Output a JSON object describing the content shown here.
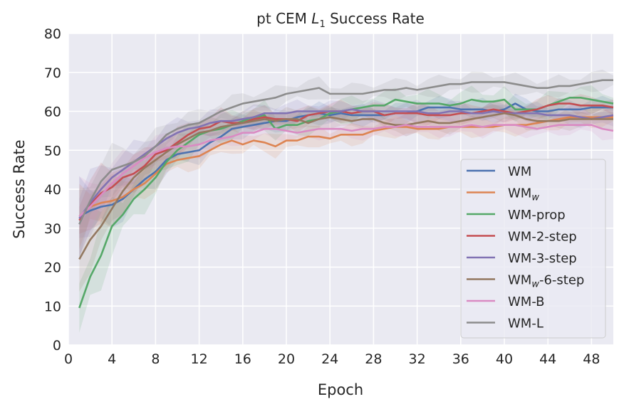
{
  "chart_data": {
    "type": "line",
    "title": {
      "prefix": "pt CEM ",
      "var": "L",
      "sub": "1",
      "suffix": " Success Rate"
    },
    "xlabel": "Epoch",
    "ylabel": "Success Rate",
    "xlim": [
      0,
      50
    ],
    "ylim": [
      0,
      80
    ],
    "xticks": [
      "0",
      "4",
      "8",
      "12",
      "16",
      "20",
      "24",
      "28",
      "32",
      "36",
      "40",
      "44",
      "48"
    ],
    "yticks": [
      "0",
      "10",
      "20",
      "30",
      "40",
      "50",
      "60",
      "70",
      "80"
    ],
    "grid": true,
    "legend_position": "lower-right",
    "x": [
      1,
      2,
      3,
      4,
      5,
      6,
      7,
      8,
      9,
      10,
      11,
      12,
      13,
      14,
      15,
      16,
      17,
      18,
      19,
      20,
      21,
      22,
      23,
      24,
      25,
      26,
      27,
      28,
      29,
      30,
      31,
      32,
      33,
      34,
      35,
      36,
      37,
      38,
      39,
      40,
      41,
      42,
      43,
      44,
      45,
      46,
      47,
      48,
      49,
      50
    ],
    "series": [
      {
        "name": "WM",
        "label": {
          "base": "WM",
          "sub": "",
          "rest": ""
        },
        "color": "#4c72b0",
        "band": 2,
        "values": [
          33,
          34.5,
          35.5,
          36,
          37.5,
          40,
          42.5,
          44.5,
          47.5,
          49,
          49.5,
          50,
          52,
          53.5,
          55.5,
          56,
          56.5,
          57,
          57.5,
          57.5,
          58.5,
          59,
          59.5,
          59,
          59.5,
          59,
          59,
          59,
          59,
          59.5,
          59.5,
          60,
          61,
          61,
          61,
          60.5,
          60.5,
          60.5,
          60,
          60.5,
          62,
          60.5,
          60,
          60,
          60.5,
          60.5,
          60.5,
          61,
          61,
          61
        ]
      },
      {
        "name": "WM_w",
        "label": {
          "base": "WM",
          "sub": "w",
          "rest": ""
        },
        "color": "#dd8452",
        "band": 2,
        "values": [
          33,
          35.5,
          36.5,
          37,
          38,
          40,
          41.5,
          44,
          46.5,
          47.5,
          48,
          48.5,
          50,
          51.5,
          52.5,
          51.5,
          52.5,
          52,
          51,
          52.5,
          52.5,
          53.5,
          53.5,
          53,
          54,
          54,
          54,
          55,
          55.5,
          56,
          56,
          55.5,
          55.5,
          55.5,
          56,
          56,
          56,
          56,
          56,
          56.5,
          56.5,
          56.5,
          57,
          57.5,
          58,
          58.5,
          58.5,
          58.5,
          58.5,
          58.5
        ]
      },
      {
        "name": "WM-prop",
        "label": {
          "base": "WM-prop",
          "sub": "",
          "rest": ""
        },
        "color": "#55a868",
        "band": 2.5,
        "values": [
          9.5,
          17.5,
          23,
          30.5,
          33.5,
          37.5,
          40,
          43,
          47,
          50,
          52,
          54,
          55,
          55.5,
          56.5,
          57.5,
          58.5,
          59,
          55.5,
          56.5,
          56.5,
          57.5,
          58,
          59.5,
          60,
          60.5,
          61,
          61.5,
          61.5,
          63,
          62.5,
          62,
          62,
          62,
          61.5,
          62,
          63,
          62.5,
          62.5,
          63,
          60.5,
          60.5,
          60.5,
          61.5,
          62.5,
          63.5,
          63.5,
          63,
          62.5,
          62
        ]
      },
      {
        "name": "WM-2-step",
        "label": {
          "base": "WM-2-step",
          "sub": "",
          "rest": ""
        },
        "color": "#c44e52",
        "band": 2,
        "values": [
          32,
          36,
          39,
          40.5,
          43,
          44,
          46,
          49,
          50,
          52,
          54,
          55.5,
          56,
          57.5,
          57,
          57,
          58,
          58.5,
          58,
          58,
          57.5,
          59,
          59.5,
          60,
          60,
          59.5,
          60,
          60,
          59,
          59.5,
          59.5,
          59.5,
          59,
          59,
          59,
          59.5,
          59.5,
          60,
          60.5,
          60,
          59.5,
          60,
          60.5,
          61.5,
          62,
          62,
          61.5,
          61.5,
          61.5,
          61
        ]
      },
      {
        "name": "WM-3-step",
        "label": {
          "base": "WM-3-step",
          "sub": "",
          "rest": ""
        },
        "color": "#8172b3",
        "band": 2,
        "values": [
          32.5,
          36.5,
          40,
          43,
          45,
          47,
          49,
          51,
          53,
          54.5,
          55.5,
          56,
          57,
          57.5,
          57.5,
          58,
          58.5,
          59.5,
          59.5,
          59.5,
          60,
          60,
          60,
          60,
          60,
          60.5,
          60,
          60,
          60,
          60,
          60,
          60,
          59.5,
          59.5,
          60,
          60,
          59.5,
          59.5,
          60,
          59.5,
          59.5,
          59.5,
          59.5,
          59,
          59,
          59,
          58.5,
          58,
          58.5,
          59
        ]
      },
      {
        "name": "WM_w-6-step",
        "label": {
          "base": "WM",
          "sub": "w",
          "rest": "-6-step"
        },
        "color": "#937860",
        "band": 2,
        "values": [
          22,
          27,
          30.5,
          35,
          39.5,
          43,
          45.5,
          47.5,
          49.5,
          51.5,
          53,
          54.5,
          55,
          56,
          56.5,
          57,
          57.5,
          58,
          57.5,
          58,
          58,
          57,
          58,
          58.5,
          58,
          57.5,
          58,
          58,
          57,
          56.5,
          56.5,
          57,
          57.5,
          57,
          57,
          57.5,
          58,
          58.5,
          59,
          59.5,
          59,
          58,
          57.5,
          57.5,
          57.5,
          58,
          58,
          58,
          58,
          58
        ]
      },
      {
        "name": "WM-B",
        "label": {
          "base": "WM-B",
          "sub": "",
          "rest": ""
        },
        "color": "#da8bc3",
        "band": 2,
        "values": [
          33,
          35.5,
          38.5,
          41.5,
          44,
          46,
          48,
          49.5,
          50.5,
          51,
          51,
          51.5,
          52.5,
          53,
          53.5,
          54.5,
          54.5,
          55.5,
          55.5,
          55,
          54.5,
          55,
          55.5,
          55.5,
          55.5,
          55,
          55.5,
          55.5,
          56,
          56,
          56.5,
          56,
          56,
          56,
          56,
          56,
          56.5,
          56,
          56.5,
          56.5,
          56.5,
          56,
          55.5,
          56,
          56.5,
          56.5,
          56.5,
          56.5,
          55.5,
          55
        ]
      },
      {
        "name": "WM-L",
        "label": {
          "base": "WM-L",
          "sub": "",
          "rest": ""
        },
        "color": "#8c8c8c",
        "band": 2,
        "values": [
          31,
          37,
          42,
          45,
          46,
          47,
          48.5,
          51,
          54,
          55.5,
          56.5,
          57,
          58.5,
          60,
          61,
          62,
          62.5,
          63,
          63.5,
          64.5,
          65,
          65.5,
          66,
          64.5,
          64.5,
          64.5,
          64.5,
          65,
          65.5,
          65.5,
          66,
          65.5,
          66,
          66.5,
          67,
          67,
          67.5,
          67.5,
          67.5,
          67.5,
          67,
          66.5,
          66,
          66,
          66.5,
          66.5,
          67,
          67.5,
          68,
          68
        ]
      }
    ]
  }
}
